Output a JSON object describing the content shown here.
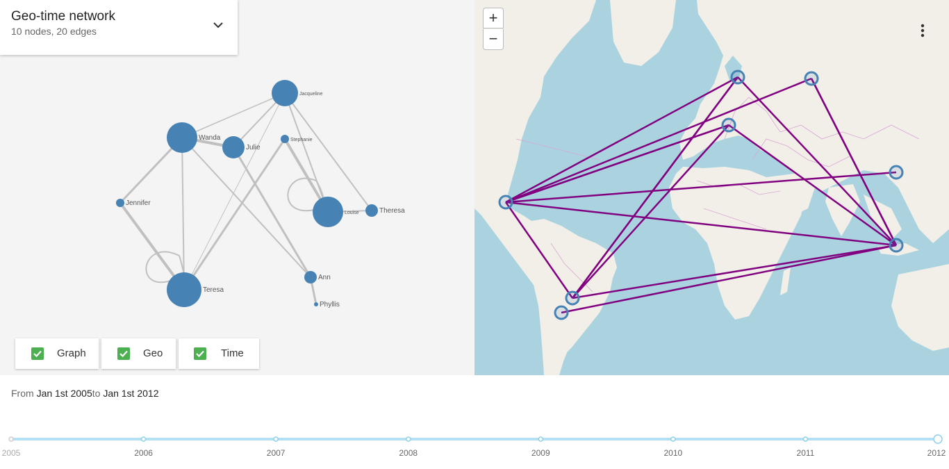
{
  "header": {
    "title": "Geo-time network",
    "subtitle": "10 nodes, 20 edges"
  },
  "toggles": [
    {
      "label": "Graph",
      "checked": true
    },
    {
      "label": "Geo",
      "checked": true
    },
    {
      "label": "Time",
      "checked": true
    }
  ],
  "graph": {
    "node_color": "#4682b4",
    "edge_color": "#c0c0c0",
    "nodes": [
      {
        "label": "Jacqueline"
      },
      {
        "label": "Wanda"
      },
      {
        "label": "Julie"
      },
      {
        "label": "Stephanie"
      },
      {
        "label": "Jennifer"
      },
      {
        "label": "Louise"
      },
      {
        "label": "Theresa"
      },
      {
        "label": "Teresa"
      },
      {
        "label": "Ann"
      },
      {
        "label": "Phyllis"
      }
    ]
  },
  "map": {
    "zoom_in_label": "+",
    "zoom_out_label": "−",
    "link_color": "#800080",
    "marker_color": "#4682b4",
    "water_color": "#aad3df",
    "land_color": "#f2efe9"
  },
  "time_range": {
    "from_label": "From",
    "from_value": "Jan 1st 2005",
    "to_label": "to",
    "to_value": "Jan 1st 2012"
  },
  "timeline": {
    "years": [
      "2005",
      "2006",
      "2007",
      "2008",
      "2009",
      "2010",
      "2011",
      "2012"
    ],
    "track_color": "#b3e0f2"
  }
}
